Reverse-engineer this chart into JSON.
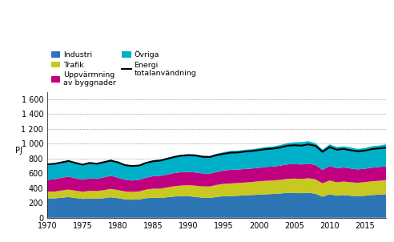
{
  "years": [
    1970,
    1971,
    1972,
    1973,
    1974,
    1975,
    1976,
    1977,
    1978,
    1979,
    1980,
    1981,
    1982,
    1983,
    1984,
    1985,
    1986,
    1987,
    1988,
    1989,
    1990,
    1991,
    1992,
    1993,
    1994,
    1995,
    1996,
    1997,
    1998,
    1999,
    2000,
    2001,
    2002,
    2003,
    2004,
    2005,
    2006,
    2007,
    2008,
    2009,
    2010,
    2011,
    2012,
    2013,
    2014,
    2015,
    2016,
    2017,
    2018
  ],
  "industri": [
    265,
    262,
    272,
    280,
    268,
    255,
    262,
    258,
    265,
    278,
    265,
    250,
    245,
    248,
    265,
    272,
    268,
    278,
    288,
    292,
    292,
    282,
    272,
    268,
    282,
    292,
    292,
    298,
    302,
    308,
    312,
    318,
    322,
    328,
    338,
    338,
    332,
    338,
    325,
    285,
    318,
    298,
    308,
    298,
    292,
    298,
    308,
    312,
    318
  ],
  "trafik": [
    88,
    92,
    96,
    102,
    98,
    98,
    102,
    103,
    108,
    113,
    110,
    106,
    106,
    108,
    116,
    122,
    126,
    132,
    138,
    144,
    148,
    152,
    152,
    156,
    162,
    167,
    172,
    172,
    175,
    176,
    182,
    182,
    182,
    185,
    187,
    192,
    192,
    196,
    194,
    181,
    186,
    182,
    182,
    182,
    181,
    184,
    186,
    188,
    192
  ],
  "uppvarmning": [
    160,
    165,
    172,
    175,
    168,
    162,
    168,
    165,
    172,
    176,
    168,
    158,
    153,
    156,
    162,
    168,
    172,
    175,
    178,
    180,
    180,
    178,
    175,
    172,
    176,
    180,
    185,
    182,
    182,
    182,
    182,
    188,
    188,
    192,
    196,
    196,
    196,
    198,
    194,
    182,
    196,
    190,
    190,
    186,
    181,
    181,
    184,
    186,
    186
  ],
  "ovriga": [
    205,
    210,
    215,
    220,
    212,
    205,
    210,
    208,
    215,
    220,
    212,
    200,
    196,
    200,
    208,
    215,
    220,
    225,
    230,
    236,
    240,
    245,
    240,
    240,
    244,
    248,
    255,
    255,
    260,
    260,
    265,
    268,
    272,
    278,
    288,
    294,
    302,
    302,
    295,
    272,
    292,
    286,
    286,
    282,
    276,
    280,
    288,
    290,
    296
  ],
  "energi_total": [
    722,
    730,
    748,
    768,
    742,
    718,
    742,
    730,
    752,
    772,
    750,
    712,
    700,
    706,
    742,
    764,
    772,
    798,
    822,
    840,
    846,
    842,
    824,
    820,
    848,
    864,
    880,
    882,
    895,
    902,
    915,
    928,
    935,
    950,
    974,
    980,
    975,
    992,
    972,
    892,
    955,
    920,
    930,
    912,
    898,
    908,
    928,
    938,
    948
  ],
  "colors": {
    "industri": "#2E75B6",
    "trafik": "#C8C820",
    "uppvarmning": "#C00080",
    "ovriga": "#00B0C8",
    "total_line": "#000000"
  },
  "ylabel": "PJ",
  "ylim": [
    0,
    1700
  ],
  "yticks": [
    0,
    200,
    400,
    600,
    800,
    1000,
    1200,
    1400,
    1600
  ],
  "ytick_labels": [
    "0",
    "200",
    "400",
    "600",
    "800",
    "1 000",
    "1 200",
    "1 400",
    "1 600"
  ],
  "xticks": [
    1970,
    1975,
    1980,
    1985,
    1990,
    1995,
    2000,
    2005,
    2010,
    2015
  ],
  "figsize": [
    4.92,
    3.02
  ],
  "dpi": 100
}
